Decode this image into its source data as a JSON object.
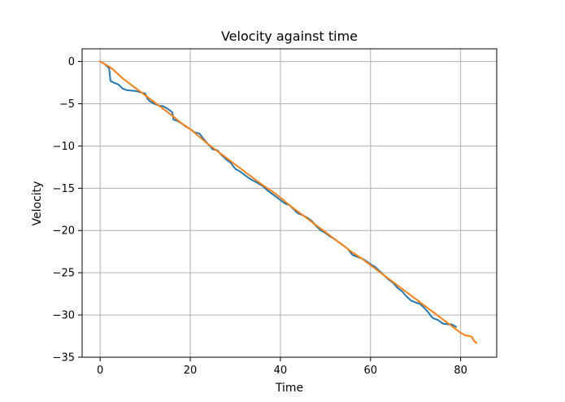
{
  "chart_data": {
    "type": "line",
    "title": "Velocity against time",
    "xlabel": "Time",
    "ylabel": "Velocity",
    "xlim": [
      -4,
      88
    ],
    "ylim": [
      -35,
      1.5
    ],
    "x_ticks": [
      0,
      20,
      40,
      60,
      80
    ],
    "y_ticks": [
      0,
      -5,
      -10,
      -15,
      -20,
      -25,
      -30,
      -35
    ],
    "x_tick_labels": [
      "0",
      "20",
      "40",
      "60",
      "80"
    ],
    "y_tick_labels": [
      "0",
      "−5",
      "−10",
      "−15",
      "−20",
      "−25",
      "−30",
      "−35"
    ],
    "grid": true,
    "series": [
      {
        "color": "#1f77b4",
        "x": [
          0,
          1,
          2,
          2.3,
          3,
          4,
          5,
          6,
          8,
          10,
          10.5,
          11,
          12,
          13,
          14,
          15,
          16,
          16.3,
          17,
          18,
          19,
          20,
          21,
          22,
          23,
          24,
          25,
          26,
          27,
          28,
          29,
          30,
          31,
          32,
          33,
          34,
          35,
          36,
          37,
          38,
          39,
          40,
          41,
          42,
          43,
          43.5,
          44,
          45,
          46,
          47,
          48,
          49,
          50,
          51,
          52,
          53,
          54,
          55,
          56,
          57,
          58,
          59,
          60,
          61,
          62,
          63,
          64,
          65,
          66,
          67,
          68,
          69,
          70,
          71,
          72,
          73,
          73.5,
          74,
          75,
          76,
          77,
          78,
          79
        ],
        "y": [
          0,
          -0.3,
          -0.8,
          -2.3,
          -2.5,
          -2.7,
          -3.2,
          -3.4,
          -3.5,
          -3.8,
          -4.4,
          -4.7,
          -5.0,
          -5.2,
          -5.3,
          -5.6,
          -6.0,
          -6.9,
          -7.0,
          -7.3,
          -7.7,
          -8.0,
          -8.4,
          -8.5,
          -9.2,
          -9.8,
          -10.4,
          -10.5,
          -11.1,
          -11.6,
          -12.0,
          -12.7,
          -13.0,
          -13.4,
          -13.8,
          -14.1,
          -14.4,
          -14.7,
          -15.2,
          -15.6,
          -16.0,
          -16.4,
          -16.8,
          -17.0,
          -17.5,
          -17.8,
          -18.0,
          -18.2,
          -18.5,
          -18.9,
          -19.5,
          -20.0,
          -20.3,
          -20.7,
          -21.0,
          -21.4,
          -21.8,
          -22.2,
          -22.9,
          -23.1,
          -23.3,
          -23.6,
          -24.0,
          -24.3,
          -24.8,
          -25.3,
          -25.8,
          -26.2,
          -26.8,
          -27.2,
          -27.8,
          -28.3,
          -28.5,
          -28.7,
          -29.2,
          -29.8,
          -30.2,
          -30.4,
          -30.6,
          -31.0,
          -31.1,
          -31.1,
          -31.4
        ]
      },
      {
        "color": "#ff7f0e",
        "x": [
          0,
          1,
          2,
          3,
          4,
          5,
          6,
          7,
          8,
          10,
          12,
          14,
          16,
          18,
          20,
          22,
          24,
          26,
          28,
          30,
          32,
          34,
          36,
          38,
          40,
          42,
          44,
          46,
          48,
          50,
          52,
          54,
          56,
          58,
          60,
          62,
          64,
          66,
          68,
          70,
          72,
          74,
          76,
          78,
          80,
          81,
          82,
          82.5,
          83,
          83.5
        ],
        "y": [
          0,
          -0.3,
          -0.6,
          -1.0,
          -1.5,
          -2.0,
          -2.4,
          -2.8,
          -3.2,
          -4.0,
          -4.8,
          -5.6,
          -6.4,
          -7.3,
          -8.0,
          -8.9,
          -9.8,
          -10.6,
          -11.4,
          -12.2,
          -13.0,
          -13.8,
          -14.6,
          -15.3,
          -16.1,
          -17.0,
          -17.8,
          -18.6,
          -19.4,
          -20.2,
          -21.0,
          -21.8,
          -22.6,
          -23.3,
          -24.1,
          -24.9,
          -25.7,
          -26.5,
          -27.3,
          -28.1,
          -28.9,
          -29.7,
          -30.5,
          -31.3,
          -32.1,
          -32.4,
          -32.5,
          -32.6,
          -33.1,
          -33.3
        ]
      }
    ]
  }
}
